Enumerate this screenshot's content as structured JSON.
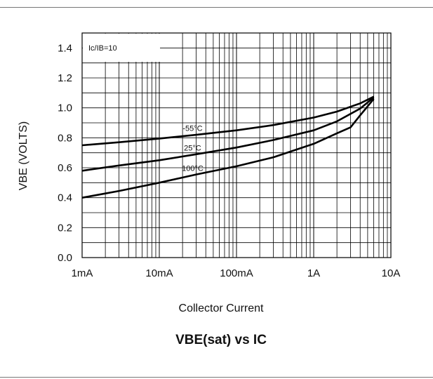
{
  "chart_data": {
    "type": "line",
    "title": "VBE(sat) vs IC",
    "xlabel": "Collector Current",
    "ylabel": "VBE  (VOLTS)",
    "x_scale": "log",
    "x_ticks": [
      "1mA",
      "10mA",
      "100mA",
      "1A",
      "10A"
    ],
    "x_tick_values": [
      0.001,
      0.01,
      0.1,
      1,
      10
    ],
    "xlim": [
      0.001,
      10
    ],
    "y_ticks": [
      "0.0",
      "0.2",
      "0.4",
      "0.6",
      "0.8",
      "1.0",
      "1.2",
      "1.4"
    ],
    "ylim": [
      0,
      1.5
    ],
    "grid": true,
    "annotation": "Ic/IB=10",
    "series": [
      {
        "name": "-55°C",
        "x": [
          0.001,
          0.003,
          0.01,
          0.03,
          0.1,
          0.3,
          1,
          2,
          4,
          6
        ],
        "y": [
          0.75,
          0.77,
          0.795,
          0.82,
          0.85,
          0.885,
          0.935,
          0.975,
          1.03,
          1.075
        ]
      },
      {
        "name": "25°C",
        "x": [
          0.001,
          0.003,
          0.01,
          0.03,
          0.1,
          0.3,
          1,
          2,
          4,
          6
        ],
        "y": [
          0.58,
          0.615,
          0.65,
          0.69,
          0.735,
          0.785,
          0.85,
          0.91,
          0.995,
          1.07
        ]
      },
      {
        "name": "100°C",
        "x": [
          0.001,
          0.003,
          0.01,
          0.03,
          0.1,
          0.3,
          1,
          2,
          3,
          4,
          6
        ],
        "y": [
          0.4,
          0.445,
          0.5,
          0.555,
          0.61,
          0.67,
          0.76,
          0.83,
          0.87,
          0.95,
          1.06
        ]
      }
    ]
  }
}
